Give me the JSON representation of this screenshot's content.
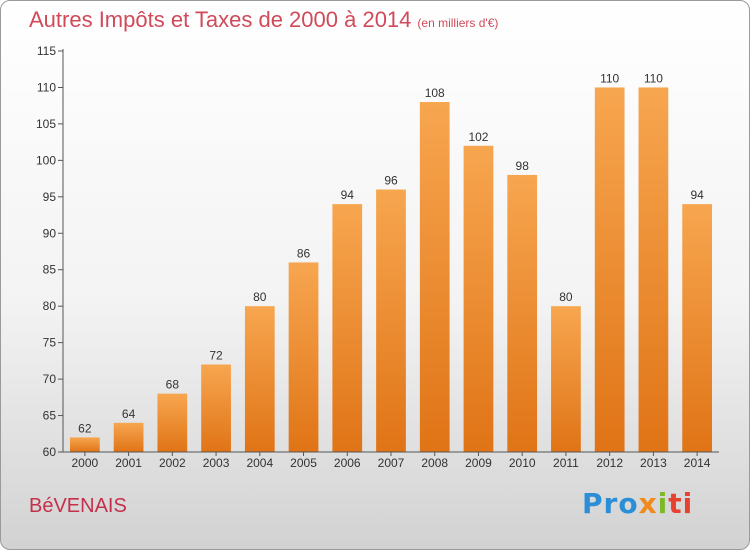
{
  "chart_data": {
    "type": "bar",
    "title": "Autres Impôts et Taxes de 2000 à 2014",
    "subtitle": "(en milliers d'€)",
    "categories": [
      "2000",
      "2001",
      "2002",
      "2003",
      "2004",
      "2005",
      "2006",
      "2007",
      "2008",
      "2009",
      "2010",
      "2011",
      "2012",
      "2013",
      "2014"
    ],
    "values": [
      62,
      64,
      68,
      72,
      80,
      86,
      94,
      96,
      108,
      102,
      98,
      80,
      110,
      110,
      94
    ],
    "ylim": [
      60,
      115
    ],
    "yticks": [
      60,
      65,
      70,
      75,
      80,
      85,
      90,
      95,
      100,
      105,
      110,
      115
    ],
    "grid": false,
    "bar_color_top": "#f7a650",
    "bar_color_bottom": "#e07416"
  },
  "place_name": "BéVENAIS",
  "logo": {
    "text": "Proxiti",
    "part1": "Pro",
    "part2": "x",
    "part3": "i",
    "part4": "ti"
  }
}
